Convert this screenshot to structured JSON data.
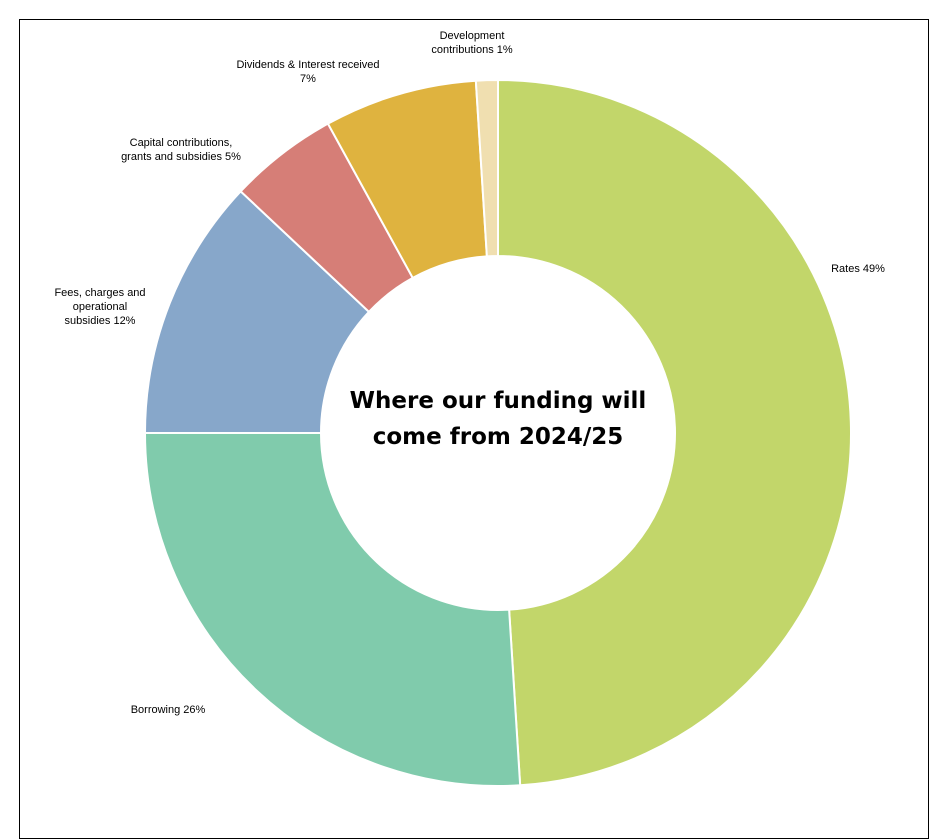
{
  "chart_data": {
    "type": "pie",
    "title_lines": [
      "Where our funding will",
      "come from 2024/25"
    ],
    "slices": [
      {
        "label_lines": [
          "Rates 49%"
        ],
        "value": 49,
        "color": "#c2d66a"
      },
      {
        "label_lines": [
          "Borrowing 26%"
        ],
        "value": 26,
        "color": "#80cbac"
      },
      {
        "label_lines": [
          "Fees, charges and",
          "operational",
          "subsidies 12%"
        ],
        "value": 12,
        "color": "#87a7ca"
      },
      {
        "label_lines": [
          "Capital contributions,",
          "grants and subsidies 5%"
        ],
        "value": 5,
        "color": "#d67e77"
      },
      {
        "label_lines": [
          "Dividends & Interest received",
          "7%"
        ],
        "value": 7,
        "color": "#dfb33f"
      },
      {
        "label_lines": [
          "Development",
          "contributions 1%"
        ],
        "value": 1,
        "color": "#f0dfb0"
      }
    ],
    "legend": "none"
  }
}
